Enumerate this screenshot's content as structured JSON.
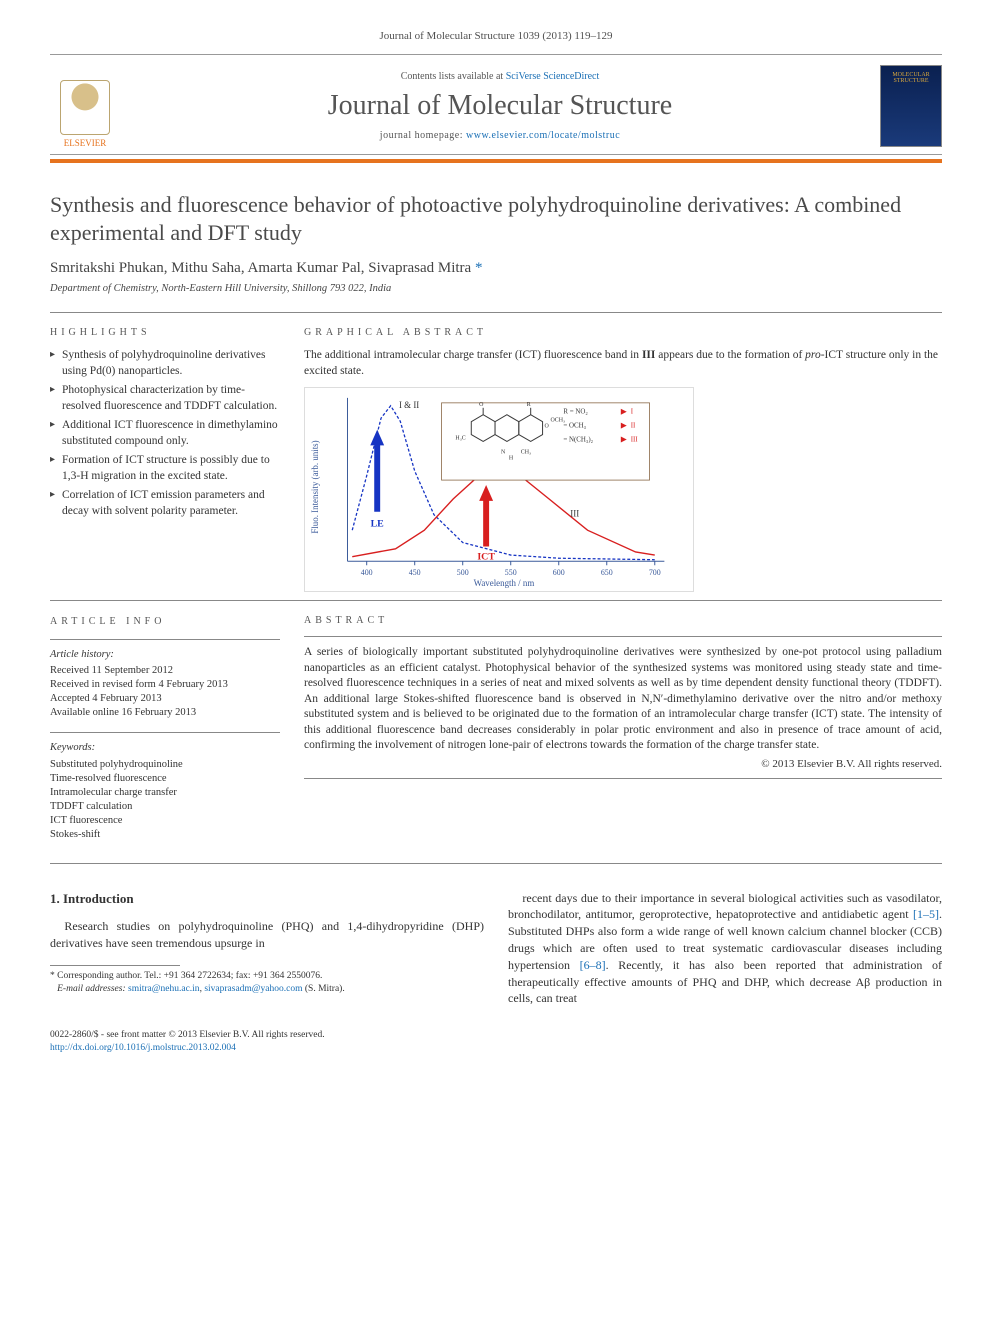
{
  "journal_ref": "Journal of Molecular Structure 1039 (2013) 119–129",
  "header": {
    "contents_prefix": "Contents lists available at ",
    "contents_link": "SciVerse ScienceDirect",
    "journal_name": "Journal of Molecular Structure",
    "homepage_prefix": "journal homepage: ",
    "homepage_link": "www.elsevier.com/locate/molstruc",
    "publisher_label": "ELSEVIER",
    "cover_text": "MOLECULAR STRUCTURE"
  },
  "title": "Synthesis and fluorescence behavior of photoactive polyhydroquinoline derivatives: A combined experimental and DFT study",
  "authors": "Smritakshi Phukan, Mithu Saha, Amarta Kumar Pal, Sivaprasad Mitra",
  "author_marker": "*",
  "affiliation": "Department of Chemistry, North-Eastern Hill University, Shillong 793 022, India",
  "highlights": {
    "label": "HIGHLIGHTS",
    "items": [
      "Synthesis of polyhydroquinoline derivatives using Pd(0) nanoparticles.",
      "Photophysical characterization by time-resolved fluorescence and TDDFT calculation.",
      "Additional ICT fluorescence in dimethylamino substituted compound only.",
      "Formation of ICT structure is possibly due to 1,3-H migration in the excited state.",
      "Correlation of ICT emission parameters and decay with solvent polarity parameter."
    ]
  },
  "graphical": {
    "label": "GRAPHICAL ABSTRACT",
    "caption_1": "The additional intramolecular charge transfer (ICT) fluorescence band in ",
    "caption_bold": "III",
    "caption_2": " appears due to the formation of ",
    "caption_em": "pro",
    "caption_3": "-ICT structure only in the excited state.",
    "chart": {
      "type": "line",
      "x_label": "Wavelength / nm",
      "y_label": "Fluo. Intensity (arb. units)",
      "xlim": [
        380,
        710
      ],
      "ylim": [
        0,
        1.05
      ],
      "xticks": [
        400,
        450,
        500,
        550,
        600,
        650,
        700
      ],
      "axis_color": "#3a5a9a",
      "tick_fontsize": 8,
      "label_fontsize": 9,
      "series": [
        {
          "name": "I & II",
          "color": "#1634c3",
          "dash": "3,2",
          "width": 1.3,
          "x": [
            385,
            400,
            415,
            425,
            435,
            450,
            470,
            500,
            550,
            600,
            700
          ],
          "y": [
            0.2,
            0.55,
            0.92,
            1.0,
            0.9,
            0.58,
            0.3,
            0.12,
            0.04,
            0.02,
            0.01
          ]
        },
        {
          "name": "III",
          "color": "#d81f1f",
          "dash": "none",
          "width": 1.4,
          "x": [
            385,
            430,
            460,
            490,
            515,
            540,
            560,
            590,
            630,
            680,
            700
          ],
          "y": [
            0.03,
            0.08,
            0.2,
            0.4,
            0.54,
            0.58,
            0.55,
            0.4,
            0.2,
            0.06,
            0.04
          ]
        }
      ],
      "annotations": {
        "le_label": "LE",
        "le_arrow_color": "#1634c3",
        "ict_label": "ICT",
        "ict_arrow_color": "#d81f1f",
        "series_1_2": "I & II",
        "series_3": "III"
      },
      "inset": {
        "border_color": "#886644",
        "legend": [
          {
            "label": "R = NO₂",
            "marker": "I",
            "marker_color": "#d81f1f"
          },
          {
            "label": "= OCH₃",
            "marker": "II",
            "marker_color": "#d81f1f"
          },
          {
            "label": "= N(CH₃)₂",
            "marker": "III",
            "marker_color": "#d81f1f"
          }
        ],
        "structure_color": "#3a3a3a"
      }
    }
  },
  "article_info": {
    "label": "ARTICLE INFO",
    "history_heading": "Article history:",
    "history": [
      "Received 11 September 2012",
      "Received in revised form 4 February 2013",
      "Accepted 4 February 2013",
      "Available online 16 February 2013"
    ],
    "keywords_heading": "Keywords:",
    "keywords": [
      "Substituted polyhydroquinoline",
      "Time-resolved fluorescence",
      "Intramolecular charge transfer",
      "TDDFT calculation",
      "ICT fluorescence",
      "Stokes-shift"
    ]
  },
  "abstract": {
    "label": "ABSTRACT",
    "text": "A series of biologically important substituted polyhydroquinoline derivatives were synthesized by one-pot protocol using palladium nanoparticles as an efficient catalyst. Photophysical behavior of the synthesized systems was monitored using steady state and time-resolved fluorescence techniques in a series of neat and mixed solvents as well as by time dependent density functional theory (TDDFT). An additional large Stokes-shifted fluorescence band is observed in N,N′-dimethylamino derivative over the nitro and/or methoxy substituted system and is believed to be originated due to the formation of an intramolecular charge transfer (ICT) state. The intensity of this additional fluorescence band decreases considerably in polar protic environment and also in presence of trace amount of acid, confirming the involvement of nitrogen lone-pair of electrons towards the formation of the charge transfer state.",
    "copyright": "© 2013 Elsevier B.V. All rights reserved."
  },
  "intro": {
    "heading": "1. Introduction",
    "para1": "Research studies on polyhydroquinoline (PHQ) and 1,4-dihydropyridine (DHP) derivatives have seen tremendous upsurge in",
    "para2a": "recent days due to their importance in several biological activities such as vasodilator, bronchodilator, antitumor, geroprotective, hepatoprotective and antidiabetic agent ",
    "ref1": "[1–5]",
    "para2b": ". Substituted DHPs also form a wide range of well known calcium channel blocker (CCB) drugs which are often used to treat systematic cardiovascular diseases including hypertension ",
    "ref2": "[6–8]",
    "para2c": ". Recently, it has also been reported that administration of therapeutically effective amounts of PHQ and DHP, which decrease Aβ production in cells, can treat"
  },
  "footnote": {
    "corr": "* Corresponding author. Tel.: +91 364 2722634; fax: +91 364 2550076.",
    "email_label": "E-mail addresses:",
    "email1": "smitra@nehu.ac.in",
    "email2": "sivaprasadm@yahoo.com",
    "email_suffix": "(S. Mitra)."
  },
  "footer": {
    "line1": "0022-2860/$ - see front matter © 2013 Elsevier B.V. All rights reserved.",
    "doi": "http://dx.doi.org/10.1016/j.molstruc.2013.02.004"
  },
  "colors": {
    "orange": "#e6731e",
    "link": "#1a6fb5",
    "text": "#333333",
    "rule": "#888888"
  }
}
